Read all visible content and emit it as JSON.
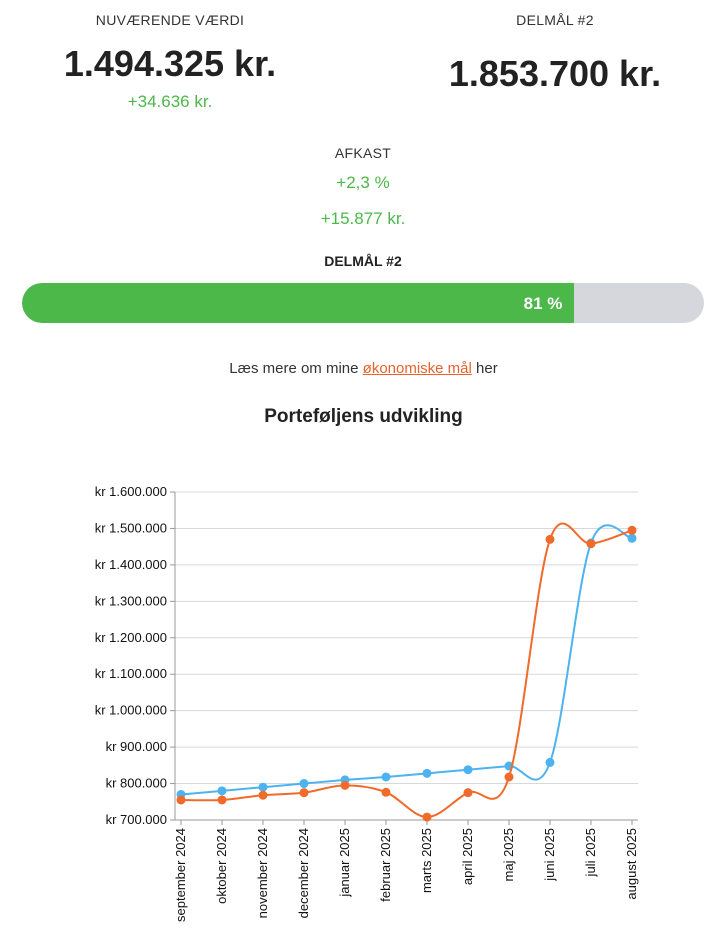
{
  "summary": {
    "current_label": "NUVÆRENDE VÆRDI",
    "current_value": "1.494.325 kr.",
    "current_delta": "+34.636 kr.",
    "goal_label": "DELMÅL #2",
    "goal_value": "1.853.700 kr.",
    "return_label": "AFKAST",
    "return_pct": "+2,3 %",
    "return_amount": "+15.877 kr."
  },
  "progress": {
    "label": "DELMÅL #2",
    "value": 0.81,
    "text": "81 %",
    "fill_color": "#4cb84a",
    "track_color": "#d5d7dc"
  },
  "readmore": {
    "prefix": "Læs mere om mine",
    "link": "økonomiske mål",
    "suffix": "her"
  },
  "chart_data": {
    "type": "line",
    "title": "Porteføljens udvikling",
    "categories": [
      "september 2024",
      "oktober 2024",
      "november 2024",
      "december 2024",
      "januar 2025",
      "februar 2025",
      "marts 2025",
      "april 2025",
      "maj 2025",
      "juni 2025",
      "juli 2025",
      "august 2025"
    ],
    "series": [
      {
        "color": "#4db3f0",
        "values": [
          770000,
          780000,
          790000,
          800000,
          810000,
          818000,
          828000,
          838000,
          848000,
          858000,
          1460000,
          1473000
        ]
      },
      {
        "color": "#f06a2a",
        "values": [
          755000,
          755000,
          768000,
          775000,
          795000,
          776000,
          708000,
          775000,
          818000,
          1470000,
          1458000,
          1495000
        ]
      }
    ],
    "ylim": [
      700000,
      1600000
    ],
    "yticks": [
      "kr 700.000",
      "kr 800.000",
      "kr 900.000",
      "kr 1.000.000",
      "kr 1.100.000",
      "kr 1.200.000",
      "kr 1.300.000",
      "kr 1.400.000",
      "kr 1.500.000",
      "kr 1.600.000"
    ],
    "grid": true,
    "smooth": true
  }
}
